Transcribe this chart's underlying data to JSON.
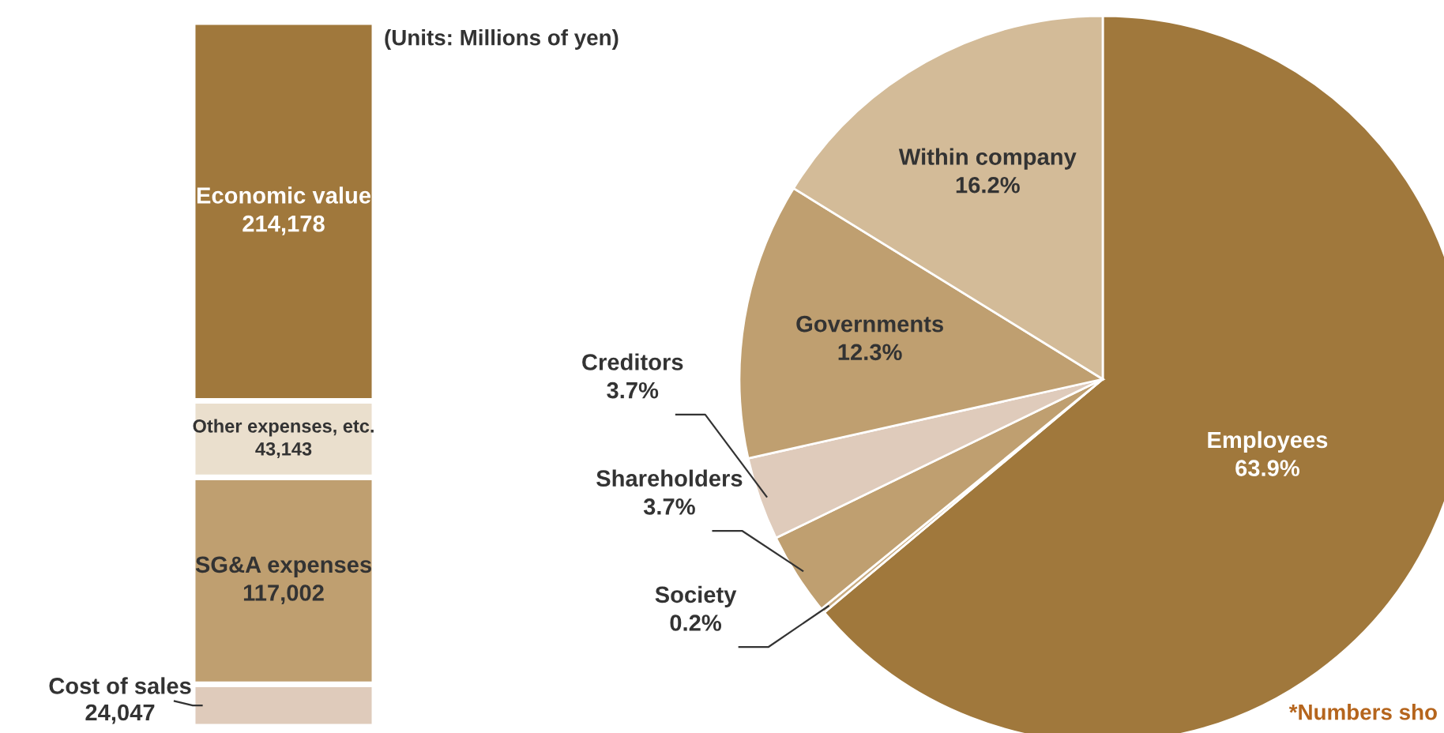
{
  "chart_data": [
    {
      "type": "bar",
      "stacked": true,
      "categories": [
        null
      ],
      "annotations": [
        "(Units: Millions of yen)"
      ],
      "series": [
        {
          "name": "Cost of sales",
          "color": "#dfcbbb",
          "values": [
            24047
          ],
          "value_labels": [
            "24,047"
          ]
        },
        {
          "name": "SG&A expenses",
          "color": "#bf9f70",
          "values": [
            117002
          ],
          "value_labels": [
            "117,002"
          ]
        },
        {
          "name": "Other expenses, etc.",
          "color": "#eadfcd",
          "values": [
            43143
          ],
          "value_labels": [
            "43,143"
          ]
        },
        {
          "name": "Economic value",
          "color": "#a0783c",
          "values": [
            214178
          ],
          "value_labels": [
            "214,178"
          ]
        }
      ]
    },
    {
      "type": "pie",
      "categories": [
        "Employees",
        "Society",
        "Shareholders",
        "Creditors",
        "Governments",
        "Within company"
      ],
      "values": [
        63.9,
        0.2,
        3.7,
        3.7,
        12.3,
        16.2
      ],
      "value_labels": [
        "63.9%",
        "0.2%",
        "3.7%",
        "3.7%",
        "12.3%",
        "16.2%"
      ],
      "colors": [
        "#a0783c",
        "#c9ab80",
        "#bf9f70",
        "#dfcbbb",
        "#bf9f70",
        "#d3bb98"
      ],
      "annotations": [
        "*Numbers sho"
      ]
    }
  ]
}
